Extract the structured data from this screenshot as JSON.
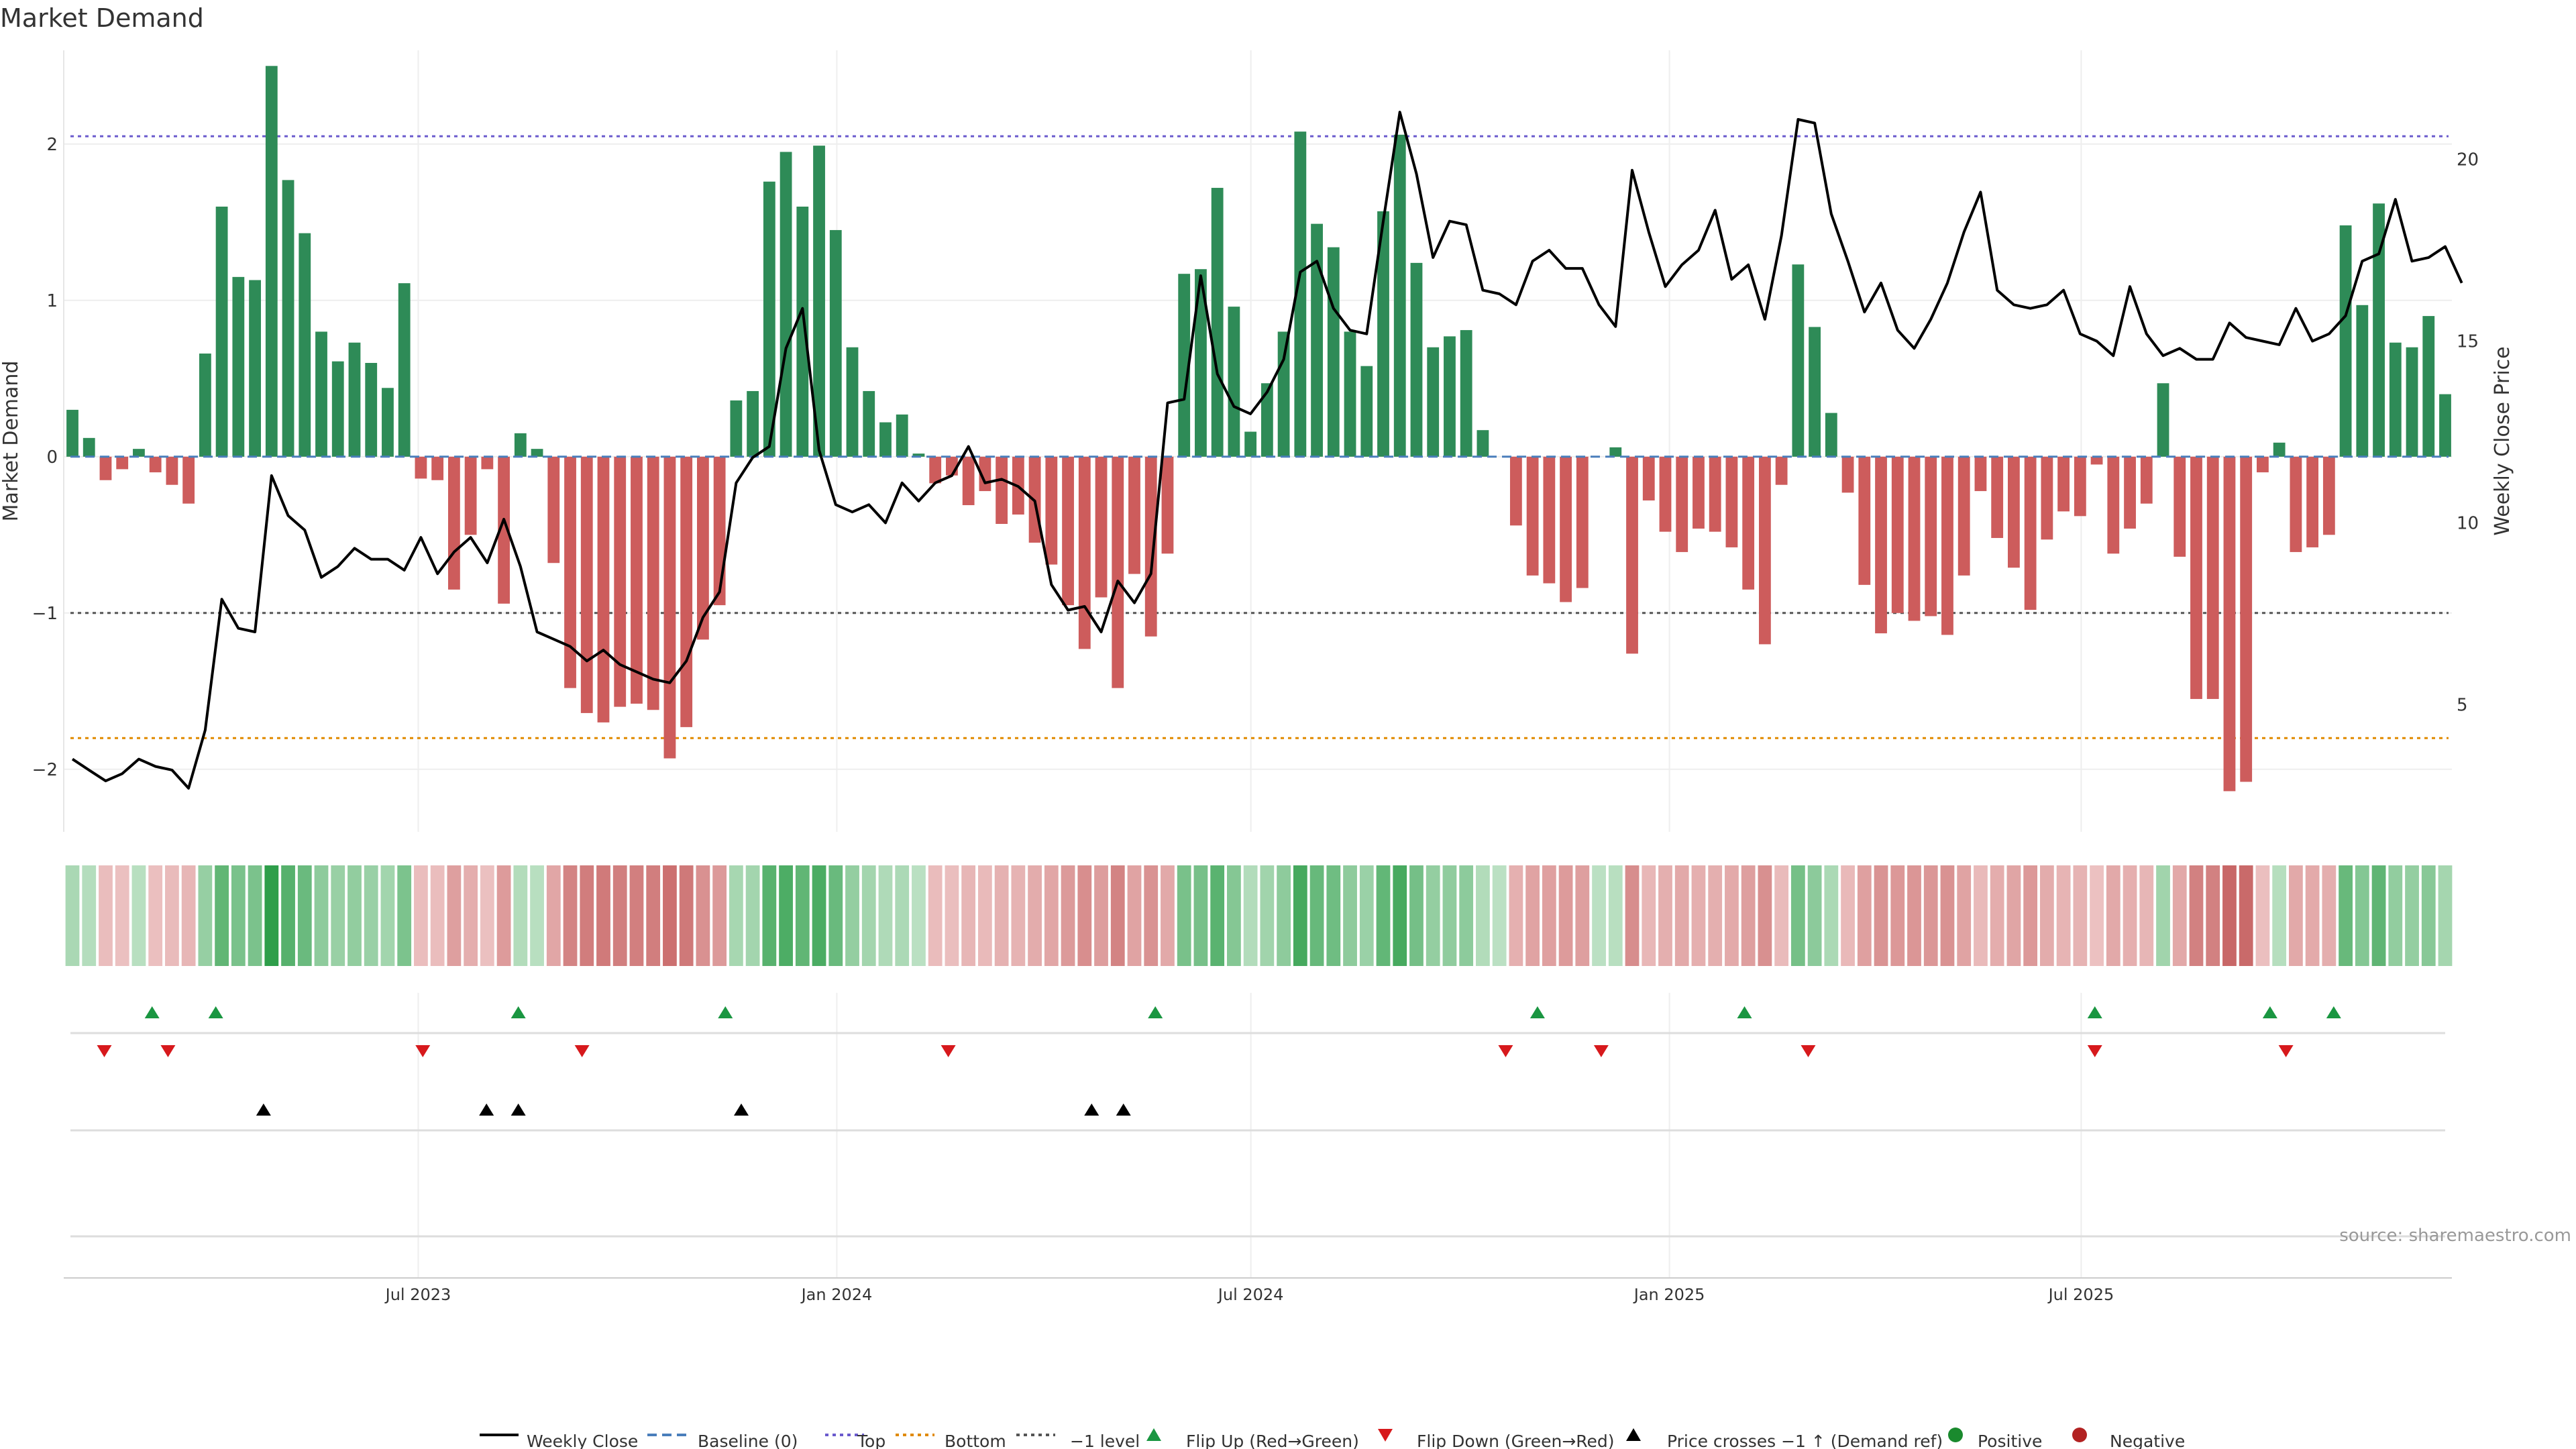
{
  "title": "Market Demand",
  "source": "source: sharemaestro.com",
  "chart_data": {
    "type": "bar",
    "title": "Market Demand",
    "ylabel": "Market Demand",
    "y2label": "Weekly Close Price",
    "ylim": [
      -2.4,
      2.6
    ],
    "y2lim": [
      1.5,
      23.0
    ],
    "yticks": [
      -2,
      -1,
      0,
      1,
      2
    ],
    "ytick_labels": [
      "−2",
      "−1",
      "0",
      "1",
      "2"
    ],
    "y2ticks": [
      5,
      10,
      15,
      20
    ],
    "y2tick_labels": [
      "5",
      "10",
      "15",
      "20"
    ],
    "reference_lines": {
      "top": 2.05,
      "bottom": -1.8,
      "minus_one": -1.0,
      "baseline": 0
    },
    "start_date": "2023-01-30",
    "end_date": "2025-12-08",
    "xticks": [
      {
        "date": "2023-07-01",
        "label": "Jul 2023"
      },
      {
        "date": "2024-01-01",
        "label": "Jan 2024"
      },
      {
        "date": "2024-07-01",
        "label": "Jul 2024"
      },
      {
        "date": "2025-01-01",
        "label": "Jan 2025"
      },
      {
        "date": "2025-07-01",
        "label": "Jul 2025"
      }
    ],
    "series": [
      {
        "name": "Market Demand",
        "kind": "bar",
        "values": [
          0.3,
          0.12,
          -0.15,
          -0.08,
          0.05,
          -0.1,
          -0.18,
          -0.3,
          0.66,
          1.6,
          1.15,
          1.13,
          2.5,
          1.77,
          1.43,
          0.8,
          0.61,
          0.73,
          0.6,
          0.44,
          1.11,
          -0.14,
          -0.15,
          -0.85,
          -0.5,
          -0.08,
          -0.94,
          0.15,
          0.05,
          -0.68,
          -1.48,
          -1.64,
          -1.7,
          -1.6,
          -1.58,
          -1.62,
          -1.93,
          -1.73,
          -1.17,
          -0.95,
          0.36,
          0.42,
          1.76,
          1.95,
          1.6,
          1.99,
          1.45,
          0.7,
          0.42,
          0.22,
          0.27,
          0.02,
          -0.17,
          -0.12,
          -0.31,
          -0.22,
          -0.43,
          -0.37,
          -0.55,
          -0.69,
          -0.95,
          -1.23,
          -0.9,
          -1.48,
          -0.75,
          -1.15,
          -0.62,
          1.17,
          1.2,
          1.72,
          0.96,
          0.16,
          0.47,
          0.8,
          2.08,
          1.49,
          1.34,
          0.8,
          0.58,
          1.57,
          2.06,
          1.24,
          0.7,
          0.77,
          0.81,
          0.17,
          0.0,
          -0.44,
          -0.76,
          -0.81,
          -0.93,
          -0.84,
          0.0,
          0.06,
          -1.26,
          -0.28,
          -0.48,
          -0.61,
          -0.46,
          -0.48,
          -0.58,
          -0.85,
          -1.2,
          -0.18,
          1.23,
          0.83,
          0.28,
          -0.23,
          -0.82,
          -1.13,
          -1.0,
          -1.05,
          -1.02,
          -1.14,
          -0.76,
          -0.22,
          -0.52,
          -0.71,
          -0.98,
          -0.53,
          -0.35,
          -0.38,
          -0.05,
          -0.62,
          -0.46,
          -0.3,
          0.47,
          -0.64,
          -1.55,
          -1.55,
          -2.14,
          -2.08,
          -0.1,
          0.09,
          -0.61,
          -0.58,
          -0.5,
          1.48,
          0.97,
          1.62,
          0.73,
          0.7,
          0.9,
          0.4
        ]
      },
      {
        "name": "Weekly Close",
        "kind": "line",
        "axis": "right",
        "values": [
          3.5,
          3.2,
          2.9,
          3.1,
          3.5,
          3.3,
          3.2,
          2.7,
          4.3,
          7.9,
          7.1,
          7.0,
          11.3,
          10.2,
          9.8,
          8.5,
          8.8,
          9.3,
          9.0,
          9.0,
          8.7,
          9.6,
          8.6,
          9.2,
          9.6,
          8.9,
          10.1,
          8.8,
          7.0,
          6.8,
          6.6,
          6.2,
          6.5,
          6.1,
          5.9,
          5.7,
          5.6,
          6.2,
          7.4,
          8.1,
          11.1,
          11.8,
          12.1,
          14.8,
          15.9,
          12.0,
          10.5,
          10.3,
          10.5,
          10.0,
          11.1,
          10.6,
          11.1,
          11.3,
          12.1,
          11.1,
          11.2,
          11.0,
          10.6,
          8.3,
          7.6,
          7.7,
          7.0,
          8.4,
          7.8,
          8.6,
          13.3,
          13.4,
          16.8,
          14.1,
          13.2,
          13.0,
          13.6,
          14.5,
          16.9,
          17.2,
          15.9,
          15.3,
          15.2,
          18.3,
          21.3,
          19.6,
          17.3,
          18.3,
          18.2,
          16.4,
          16.3,
          16.0,
          17.2,
          17.5,
          17.0,
          17.0,
          16.0,
          15.4,
          19.7,
          18.0,
          16.5,
          17.1,
          17.5,
          18.6,
          16.7,
          17.1,
          15.6,
          17.9,
          21.1,
          21.0,
          18.5,
          17.2,
          15.8,
          16.6,
          15.3,
          14.8,
          15.6,
          16.6,
          18.0,
          19.1,
          16.4,
          16.0,
          15.9,
          16.0,
          16.4,
          15.2,
          15.0,
          14.6,
          16.5,
          15.2,
          14.6,
          14.8,
          14.5,
          14.5,
          15.5,
          15.1,
          15.0,
          14.9,
          15.9,
          15.0,
          15.2,
          15.7,
          17.2,
          17.4,
          18.9,
          17.2,
          17.3,
          17.6,
          16.6
        ]
      }
    ],
    "flip_up_dates": [
      "2023-03-06",
      "2023-04-03",
      "2023-08-14",
      "2023-11-13",
      "2024-05-20",
      "2024-11-04",
      "2025-02-03",
      "2025-07-07",
      "2025-09-22",
      "2025-10-20"
    ],
    "flip_down_dates": [
      "2023-02-13",
      "2023-03-13",
      "2023-07-03",
      "2023-09-11",
      "2024-02-19",
      "2024-10-21",
      "2024-12-02",
      "2025-03-03",
      "2025-07-07",
      "2025-09-29"
    ],
    "price_cross_dates": [
      "2023-04-24",
      "2023-07-31",
      "2023-08-14",
      "2023-11-20",
      "2024-04-22",
      "2024-05-06"
    ],
    "legend": [
      {
        "label": "Weekly Close",
        "kind": "line",
        "color": "#000000"
      },
      {
        "label": "Baseline (0)",
        "kind": "dashed",
        "color": "#4a7ebb"
      },
      {
        "label": "Top",
        "kind": "dotted",
        "color": "#6a5acd"
      },
      {
        "label": "Bottom",
        "kind": "dotted",
        "color": "#e08a00"
      },
      {
        "label": "−1 level",
        "kind": "dotted",
        "color": "#555555"
      },
      {
        "label": "Flip Up (Red→Green)",
        "kind": "tri-up",
        "color": "#1a9641"
      },
      {
        "label": "Flip Down (Green→Red)",
        "kind": "tri-down",
        "color": "#d7191c"
      },
      {
        "label": "Price crosses −1 ↑ (Demand ref)",
        "kind": "tri-up",
        "color": "#000000"
      },
      {
        "label": "Positive",
        "kind": "dot",
        "color": "#1a8a2e"
      },
      {
        "label": "Negative",
        "kind": "dot",
        "color": "#b22222"
      }
    ],
    "colors": {
      "positive": "#2e8b57",
      "negative": "#cd5c5c",
      "line": "#000000",
      "top": "#6a5acd",
      "bottom": "#e08a00",
      "minus_one": "#555555",
      "baseline": "#4a7ebb",
      "grid": "#eeeeee"
    }
  }
}
